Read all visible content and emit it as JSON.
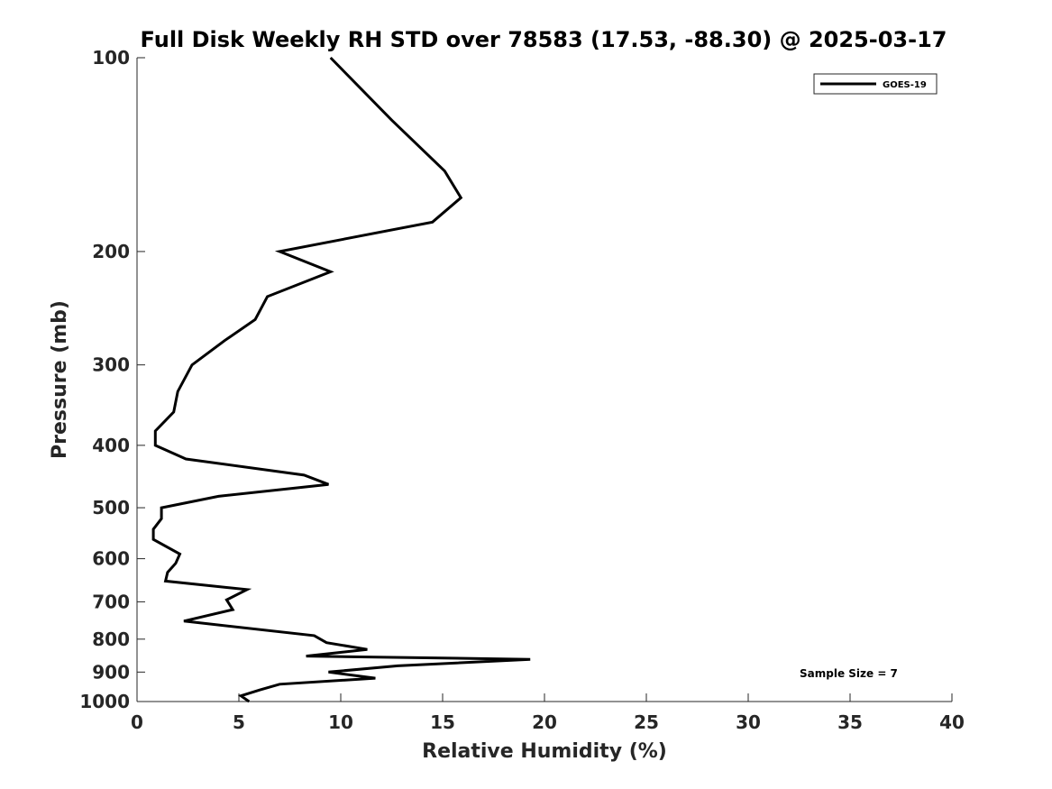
{
  "chart_data": {
    "type": "line",
    "title": "Full Disk Weekly RH STD over 78583 (17.53, -88.30) @ 2025-03-17",
    "xlabel": "Relative Humidity (%)",
    "ylabel": "Pressure (mb)",
    "xlim": [
      0,
      40
    ],
    "ylim": [
      100,
      1000
    ],
    "y_scale": "log",
    "y_reversed": true,
    "x_ticks": [
      0,
      5,
      10,
      15,
      20,
      25,
      30,
      35,
      40
    ],
    "x_tick_labels": [
      "0",
      "5",
      "10",
      "15",
      "20",
      "25",
      "30",
      "35",
      "40"
    ],
    "y_ticks": [
      100,
      200,
      300,
      400,
      500,
      600,
      700,
      800,
      900,
      1000
    ],
    "y_tick_labels": [
      "100",
      "200",
      "300",
      "400",
      "500",
      "600",
      "700",
      "800",
      "900",
      "1000"
    ],
    "legend": {
      "location": "top-right",
      "entries": [
        "GOES-19"
      ]
    },
    "annotation": "Sample Size = 7",
    "series": [
      {
        "name": "GOES-19",
        "color": "#000000",
        "rh": [
          9.5,
          12.5,
          15.1,
          15.9,
          14.5,
          7.0,
          9.5,
          6.4,
          5.8,
          4.3,
          2.7,
          2.0,
          1.8,
          0.9,
          0.9,
          2.4,
          8.2,
          9.4,
          4.0,
          1.2,
          1.2,
          0.8,
          0.8,
          2.1,
          1.9,
          1.5,
          1.4,
          5.4,
          4.4,
          4.7,
          2.3,
          8.7,
          9.3,
          11.3,
          8.3,
          19.3,
          12.8,
          9.4,
          11.7,
          7.0,
          6.0,
          5.1,
          5.5
        ],
        "pressure": [
          100,
          125,
          150,
          165,
          180,
          200,
          215,
          235,
          255,
          275,
          300,
          330,
          355,
          380,
          400,
          420,
          445,
          460,
          480,
          500,
          520,
          540,
          560,
          590,
          610,
          630,
          650,
          670,
          695,
          720,
          750,
          790,
          810,
          830,
          850,
          860,
          880,
          900,
          920,
          940,
          960,
          980,
          1000
        ]
      }
    ]
  }
}
